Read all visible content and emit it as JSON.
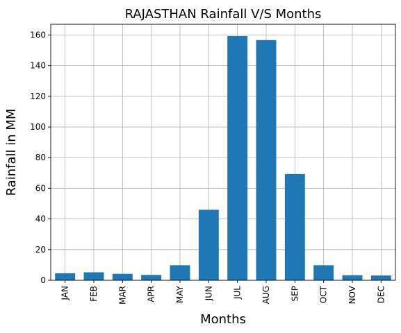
{
  "chart_data": {
    "type": "bar",
    "title": "RAJASTHAN Rainfall V/S Months",
    "xlabel": "Months",
    "ylabel": "Rainfall in MM",
    "categories": [
      "JAN",
      "FEB",
      "MAR",
      "APR",
      "MAY",
      "JUN",
      "JUL",
      "AUG",
      "SEP",
      "OCT",
      "NOV",
      "DEC"
    ],
    "values": [
      4.6,
      5.2,
      4.2,
      3.5,
      9.8,
      46.0,
      159.3,
      156.7,
      69.3,
      9.8,
      3.3,
      3.1
    ],
    "ylim": [
      0,
      167
    ],
    "yticks": [
      0,
      20,
      40,
      60,
      80,
      100,
      120,
      140,
      160
    ],
    "grid": true,
    "bar_color": "#1f77b4"
  }
}
